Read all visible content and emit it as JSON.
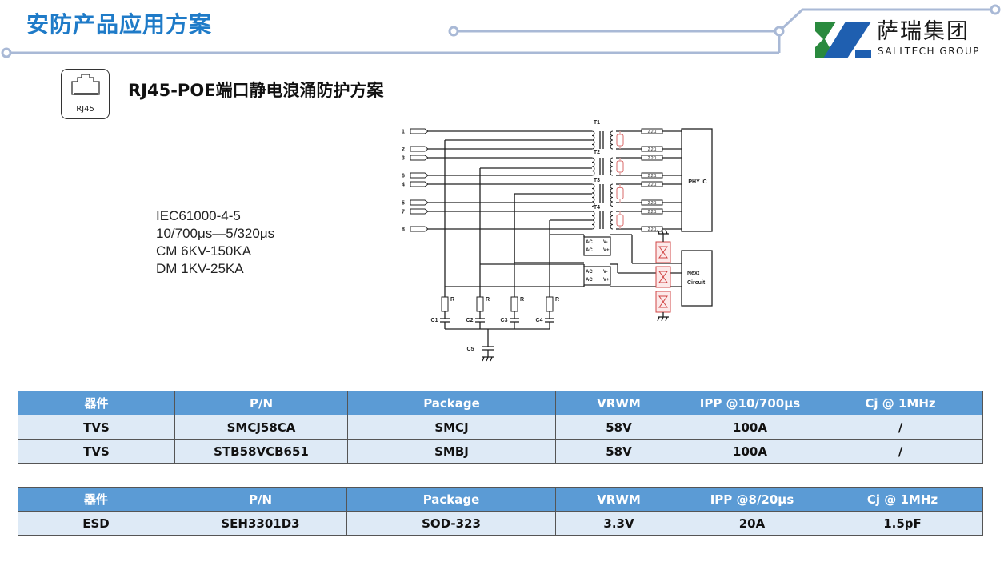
{
  "header": {
    "title": "安防产品应用方案",
    "subtitle": "RJ45-POE端口静电浪涌防护方案"
  },
  "logo": {
    "cn": "萨瑞集团",
    "en": "SALLTECH GROUP",
    "colors": {
      "green": "#2a8a3e",
      "blue": "#1f5fb0"
    }
  },
  "rj45_icon": {
    "label": "RJ45"
  },
  "spec": [
    "IEC61000-4-5",
    "10/700μs—5/320μs",
    "CM 6KV-150KA",
    "DM 1KV-25KA"
  ],
  "diagram": {
    "pins": [
      "1",
      "2",
      "3",
      "6",
      "4",
      "5",
      "7",
      "8"
    ],
    "transformers": [
      "T1",
      "T2",
      "T3",
      "T4"
    ],
    "resistor_value": "2.2Ω",
    "phy": "PHY IC",
    "next": [
      "Next",
      "Circuit"
    ],
    "bridge": {
      "ac": "AC",
      "vneg": "V-",
      "vpos": "V+"
    },
    "r_label": "R",
    "caps": [
      "C1",
      "C2",
      "C3",
      "C4",
      "C5"
    ]
  },
  "table1": {
    "headers": [
      "器件",
      "P/N",
      "Package",
      "VRWM",
      "IPP @10/700μs",
      "Cj @ 1MHz"
    ],
    "rows": [
      [
        "TVS",
        "SMCJ58CA",
        "SMCJ",
        "58V",
        "100A",
        "/"
      ],
      [
        "TVS",
        "STB58VCB651",
        "SMBJ",
        "58V",
        "100A",
        "/"
      ]
    ]
  },
  "table2": {
    "headers": [
      "器件",
      "P/N",
      "Package",
      "VRWM",
      "IPP @8/20μs",
      "Cj @ 1MHz"
    ],
    "rows": [
      [
        "ESD",
        "SEH3301D3",
        "SOD-323",
        "3.3V",
        "20A",
        "1.5pF"
      ]
    ]
  },
  "colors": {
    "title": "#1f7bc8",
    "table_header": "#5b9bd5",
    "table_row": "#deeaf6",
    "deco_line": "#a9b9d6",
    "protect": "#d04545"
  }
}
